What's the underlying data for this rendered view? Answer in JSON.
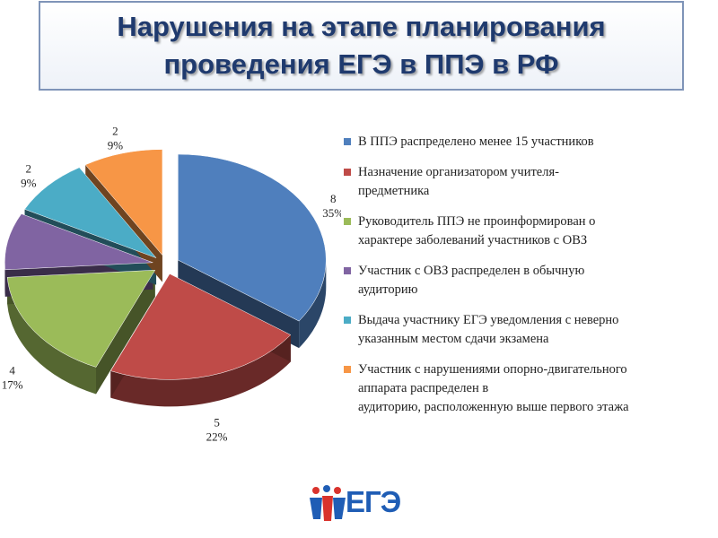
{
  "title": {
    "line1": "Нарушения на этапе планирования",
    "line2": "проведения ЕГЭ в ППЭ в РФ"
  },
  "logo": {
    "text": "ЕГЭ"
  },
  "chart_data": {
    "type": "pie",
    "title": "Нарушения на этапе планирования проведения ЕГЭ в ППЭ в РФ",
    "legend_position": "right",
    "slices": [
      {
        "label": "В ППЭ распределено менее 15 участников",
        "value": 8,
        "percent": "35%",
        "color": "#4f7fbd"
      },
      {
        "label": "Назначение организатором учителя-предметника",
        "value": 5,
        "percent": "22%",
        "color": "#bf4b48"
      },
      {
        "label": "Руководитель ППЭ не проинформирован о характере заболеваний участников с ОВЗ",
        "value": 4,
        "percent": "17%",
        "color": "#9bbb59"
      },
      {
        "label": "Участник с ОВЗ распределен в обычную аудиторию",
        "value": 2,
        "percent": "9%",
        "color": "#8064a2"
      },
      {
        "label": "Выдача участнику ЕГЭ уведомления с неверно указанным местом сдачи экзамена",
        "value": 2,
        "percent": "9%",
        "color": "#4bacc6"
      },
      {
        "label": "Участник с нарушениями опорно-двигательного аппарата распределен в аудиторию, расположенную выше первого этажа",
        "value": 2,
        "percent": "9%",
        "color": "#f79646"
      }
    ]
  },
  "legend_lines": [
    [
      "В ППЭ распределено менее 15 участников"
    ],
    [
      "Назначение организатором учителя-",
      "предметника"
    ],
    [
      "Руководитель ППЭ не проинформирован о",
      "характере заболеваний участников с ОВЗ"
    ],
    [
      "Участник с ОВЗ распределен в обычную",
      "аудиторию"
    ],
    [
      "Выдача участнику ЕГЭ уведомления с неверно",
      "указанным местом сдачи экзамена"
    ],
    [
      "Участник с нарушениями опорно-двигательного",
      "аппарата распределен в",
      "аудиторию, расположенную выше первого этажа"
    ]
  ]
}
